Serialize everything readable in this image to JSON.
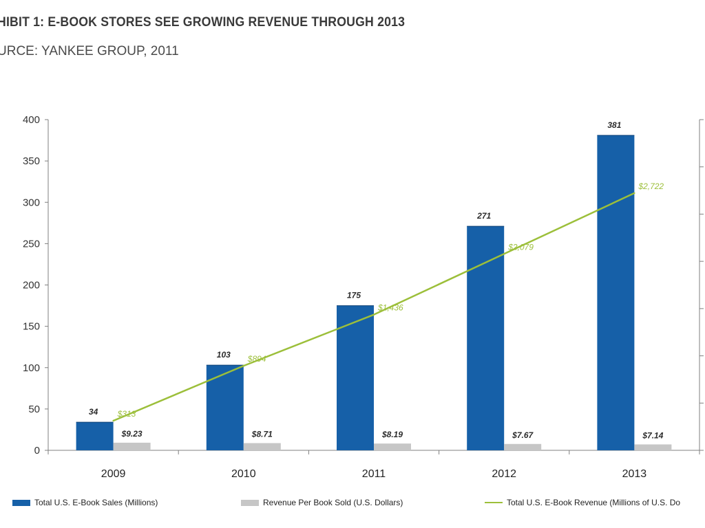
{
  "title": "HIBIT 1: E-BOOK STORES SEE GROWING REVENUE THROUGH 2013",
  "subtitle": "URCE: YANKEE GROUP, 2011",
  "colors": {
    "sales": "#1660a8",
    "price": "#c6c6c6",
    "revenue": "#9cbf3a",
    "axis": "#7f7f7f"
  },
  "chart_data": {
    "type": "bar",
    "categories": [
      "2009",
      "2010",
      "2011",
      "2012",
      "2013"
    ],
    "ylim": [
      0,
      400
    ],
    "yticks": [
      "0",
      "50",
      "100",
      "150",
      "200",
      "250",
      "300",
      "350",
      "400"
    ],
    "secondary_axis": {
      "ylim": [
        0,
        3500
      ]
    },
    "series": [
      {
        "name": "Total U.S. E-Book Sales (Millions)",
        "kind": "bar",
        "values": [
          34,
          103,
          175,
          271,
          381
        ],
        "labels": [
          "34",
          "103",
          "175",
          "271",
          "381"
        ]
      },
      {
        "name": "Revenue Per Book Sold (U.S. Dollars)",
        "kind": "bar",
        "values": [
          9.23,
          8.71,
          8.19,
          7.67,
          7.14
        ],
        "labels": [
          "$9.23",
          "$8.71",
          "$8.19",
          "$7.67",
          "$7.14"
        ]
      },
      {
        "name": "Total U.S. E-Book Revenue (Millions of U.S. Do",
        "kind": "line",
        "axis": "secondary",
        "values": [
          313,
          894,
          1436,
          2079,
          2722
        ],
        "labels": [
          "$313",
          "$894",
          "$1,436",
          "$2,079",
          "$2,722"
        ]
      }
    ],
    "legend_position": "bottom",
    "grid": false
  }
}
